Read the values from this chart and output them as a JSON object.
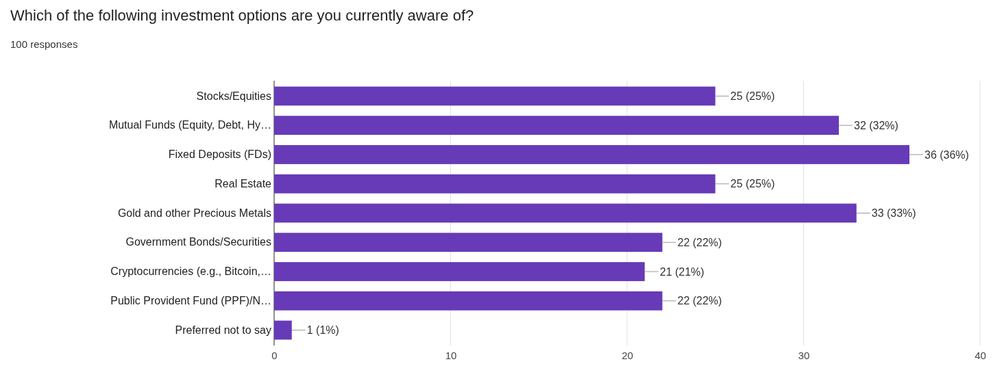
{
  "chart_data": {
    "type": "bar",
    "orientation": "horizontal",
    "title": "Which of the following investment options are you currently aware of?",
    "subtitle": "100 responses",
    "categories": [
      "Stocks/Equities",
      "Mutual Funds (Equity, Debt, Hy…",
      "Fixed Deposits (FDs)",
      "Real Estate",
      "Gold and other Precious Metals",
      "Government Bonds/Securities",
      "Cryptocurrencies (e.g., Bitcoin,…",
      "Public Provident Fund (PPF)/N…",
      "Preferred not to say"
    ],
    "values": [
      25,
      32,
      36,
      25,
      33,
      22,
      21,
      22,
      1
    ],
    "value_labels": [
      "25 (25%)",
      "32 (32%)",
      "36 (36%)",
      "25 (25%)",
      "33 (33%)",
      "22 (22%)",
      "21 (21%)",
      "22 (22%)",
      "1 (1%)"
    ],
    "color": "#673ab7",
    "xlim": [
      0,
      40
    ],
    "xticks": [
      0,
      10,
      20,
      30,
      40
    ],
    "grid": "x"
  }
}
